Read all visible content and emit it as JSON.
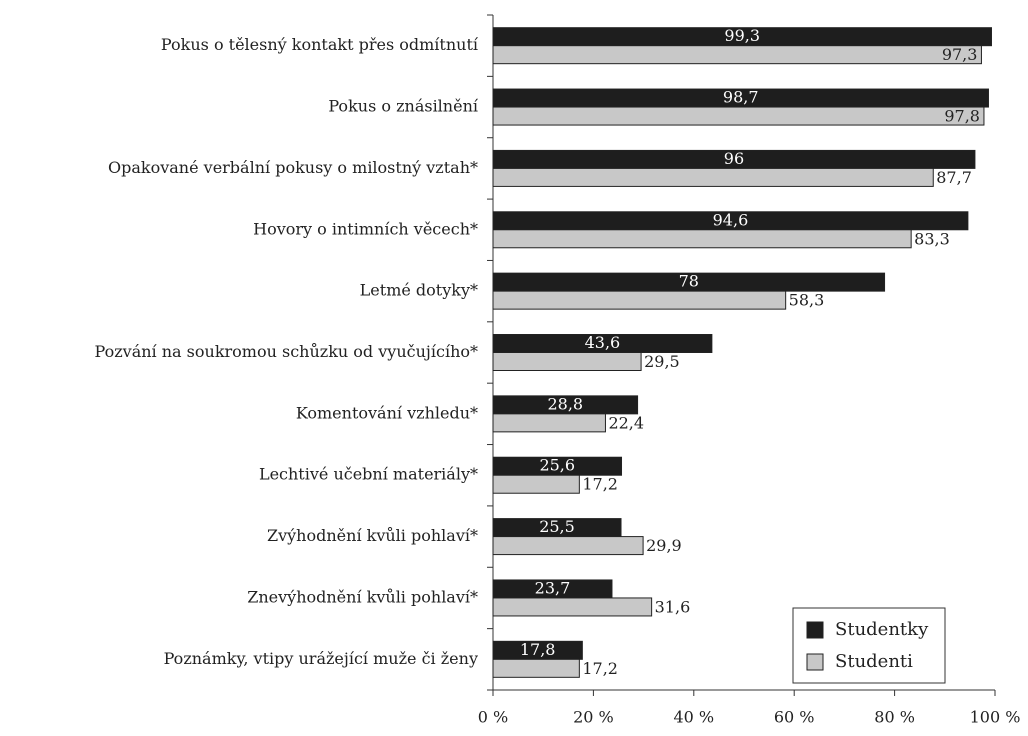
{
  "chart_data": {
    "type": "bar",
    "orientation": "horizontal",
    "categories": [
      "Pokus o tělesný kontakt přes odmítnutí",
      "Pokus o znásilnění",
      "Opakované verbální pokusy o milostný vztah*",
      "Hovory o intimních věcech*",
      "Letmé dotyky*",
      "Pozvání na soukromou schůzku od vyučujícího*",
      "Komentování vzhledu*",
      "Lechtivé učební materiály*",
      "Zvýhodnění kvůli pohlaví*",
      "Znevýhodnění kvůli pohlaví*",
      "Poznámky, vtipy urážející muže či ženy"
    ],
    "series": [
      {
        "name": "Studentky",
        "color": "#1e1e1e",
        "values": [
          99.3,
          98.7,
          96,
          94.6,
          78,
          43.6,
          28.8,
          25.6,
          25.5,
          23.7,
          17.8
        ],
        "value_labels": [
          "99,3",
          "98,7",
          "96",
          "94,6",
          "78",
          "43,6",
          "28,8",
          "25,6",
          "25,5",
          "23,7",
          "17,8"
        ]
      },
      {
        "name": "Studenti",
        "color": "#c8c8c8",
        "values": [
          97.3,
          97.8,
          87.7,
          83.3,
          58.3,
          29.5,
          22.4,
          17.2,
          29.9,
          31.6,
          17.2
        ],
        "value_labels": [
          "97,3",
          "97,8",
          "87,7",
          "83,3",
          "58,3",
          "29,5",
          "22,4",
          "17,2",
          "29,9",
          "31,6",
          "17,2"
        ]
      }
    ],
    "xlim": [
      0,
      100
    ],
    "xticks": [
      {
        "value": 0,
        "label": "0 %"
      },
      {
        "value": 20,
        "label": "20 %"
      },
      {
        "value": 40,
        "label": "40 %"
      },
      {
        "value": 60,
        "label": "60 %"
      },
      {
        "value": 80,
        "label": "80 %"
      },
      {
        "value": 100,
        "label": "100 %"
      }
    ],
    "legend": "bottom-right"
  }
}
